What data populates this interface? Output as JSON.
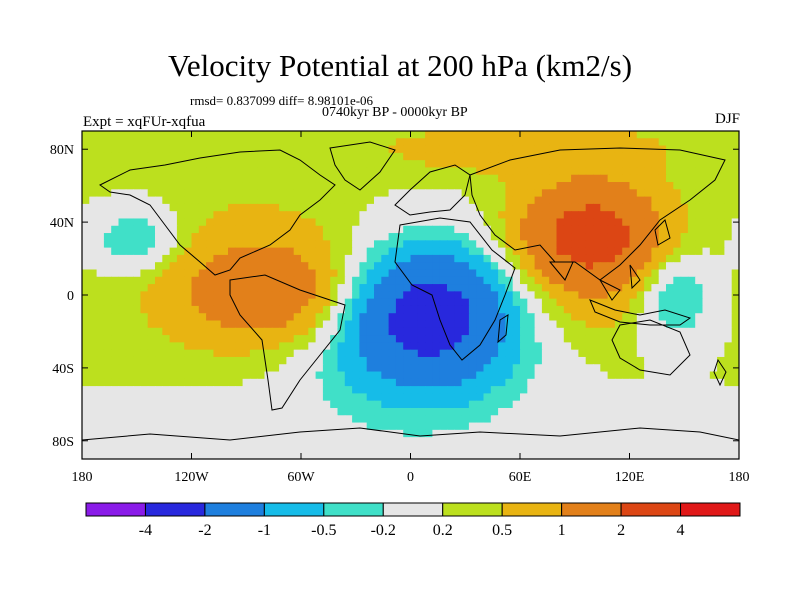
{
  "header": {
    "title": "Velocity Potential at 200 hPa (km2/s)",
    "stats": "rmsd= 0.837099 diff= 8.98101e-06",
    "period": "0740kyr BP - 0000kyr BP",
    "expt": "Expt = xqFUr-xqfua",
    "season": "DJF"
  },
  "chart_data": {
    "type": "heatmap",
    "projection": "cylindrical-equidistant",
    "title": "Velocity Potential at 200 hPa (km2/s)",
    "units": "km2/s",
    "season": "DJF",
    "xlim": [
      -180,
      180
    ],
    "ylim": [
      -90,
      90
    ],
    "x_ticks": [
      {
        "value": -180,
        "label": "180"
      },
      {
        "value": -120,
        "label": "120W"
      },
      {
        "value": -60,
        "label": "60W"
      },
      {
        "value": 0,
        "label": "0"
      },
      {
        "value": 60,
        "label": "60E"
      },
      {
        "value": 120,
        "label": "120E"
      },
      {
        "value": 180,
        "label": "180"
      }
    ],
    "y_ticks": [
      {
        "value": 80,
        "label": "80N"
      },
      {
        "value": 40,
        "label": "40N"
      },
      {
        "value": 0,
        "label": "0"
      },
      {
        "value": -40,
        "label": "40S"
      },
      {
        "value": -80,
        "label": "80S"
      }
    ],
    "contour_levels": [
      -4,
      -2,
      -1,
      -0.5,
      -0.2,
      0.2,
      0.5,
      1,
      2,
      4
    ],
    "colorbar_labels": [
      "-4",
      "-2",
      "-1",
      "-0.5",
      "-0.2",
      "0.2",
      "0.5",
      "1",
      "2",
      "4"
    ],
    "colors": [
      "#8a1be8",
      "#2828dd",
      "#1e7fde",
      "#16bce8",
      "#40e0c8",
      "#e6e6e6",
      "#bce01e",
      "#e8b412",
      "#e2801a",
      "#dc4614",
      "#e01818"
    ],
    "centers": [
      {
        "lon": 10,
        "lat": -10,
        "value": -2.4,
        "spread_lon": 45,
        "spread_lat": 36
      },
      {
        "lon": 0,
        "lat": -30,
        "value": -0.7,
        "spread_lon": 75,
        "spread_lat": 55
      },
      {
        "lon": -150,
        "lat": 30,
        "value": -0.9,
        "spread_lon": 24,
        "spread_lat": 18
      },
      {
        "lon": 145,
        "lat": 0,
        "value": -0.9,
        "spread_lon": 22,
        "spread_lat": 26
      },
      {
        "lon": -75,
        "lat": 0,
        "value": 1.1,
        "spread_lon": 48,
        "spread_lat": 26
      },
      {
        "lon": -80,
        "lat": 10,
        "value": 0.6,
        "spread_lon": 70,
        "spread_lat": 45
      },
      {
        "lon": 100,
        "lat": 35,
        "value": 1.6,
        "spread_lon": 36,
        "spread_lat": 25
      },
      {
        "lon": 95,
        "lat": 20,
        "value": 1.0,
        "spread_lon": 45,
        "spread_lat": 40
      },
      {
        "lon": 60,
        "lat": 80,
        "value": 0.6,
        "spread_lon": 80,
        "spread_lat": 14
      },
      {
        "lon": -150,
        "lat": -70,
        "value": -0.3,
        "spread_lon": 60,
        "spread_lat": 15
      }
    ],
    "background_value": 0.22
  }
}
